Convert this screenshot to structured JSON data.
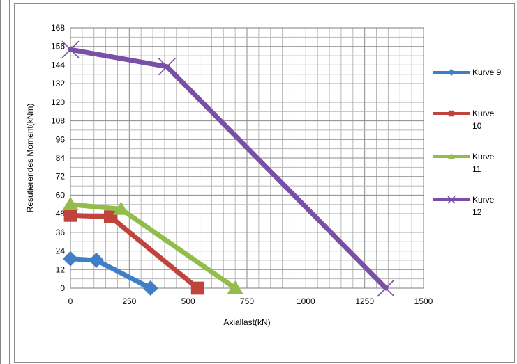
{
  "chart_data": {
    "type": "line",
    "title": "",
    "xlabel": "Axiallast(kN)",
    "ylabel": "Resutierendes Moment(kNm)",
    "xlim": [
      0,
      1500
    ],
    "ylim": [
      0,
      168
    ],
    "x_ticks": [
      0,
      250,
      500,
      750,
      1000,
      1250,
      1500
    ],
    "y_ticks": [
      0,
      12,
      24,
      36,
      48,
      60,
      72,
      84,
      96,
      108,
      120,
      132,
      144,
      156,
      168
    ],
    "grid": true,
    "legend_position": "right",
    "series": [
      {
        "name": "Kurve 9",
        "color": "#3f7fc8",
        "marker": "diamond",
        "points": [
          [
            0,
            19
          ],
          [
            110,
            18
          ],
          [
            340,
            0
          ]
        ]
      },
      {
        "name": "Kurve 10",
        "color": "#c0433c",
        "marker": "square",
        "points": [
          [
            0,
            47
          ],
          [
            170,
            46
          ],
          [
            540,
            0
          ]
        ]
      },
      {
        "name": "Kurve 11",
        "color": "#93bd4a",
        "marker": "triangle",
        "points": [
          [
            0,
            54
          ],
          [
            215,
            51
          ],
          [
            700,
            0
          ]
        ]
      },
      {
        "name": "Kurve 12",
        "color": "#7a4fa6",
        "marker": "x",
        "points": [
          [
            0,
            154
          ],
          [
            410,
            143
          ],
          [
            1340,
            0
          ]
        ]
      }
    ]
  }
}
